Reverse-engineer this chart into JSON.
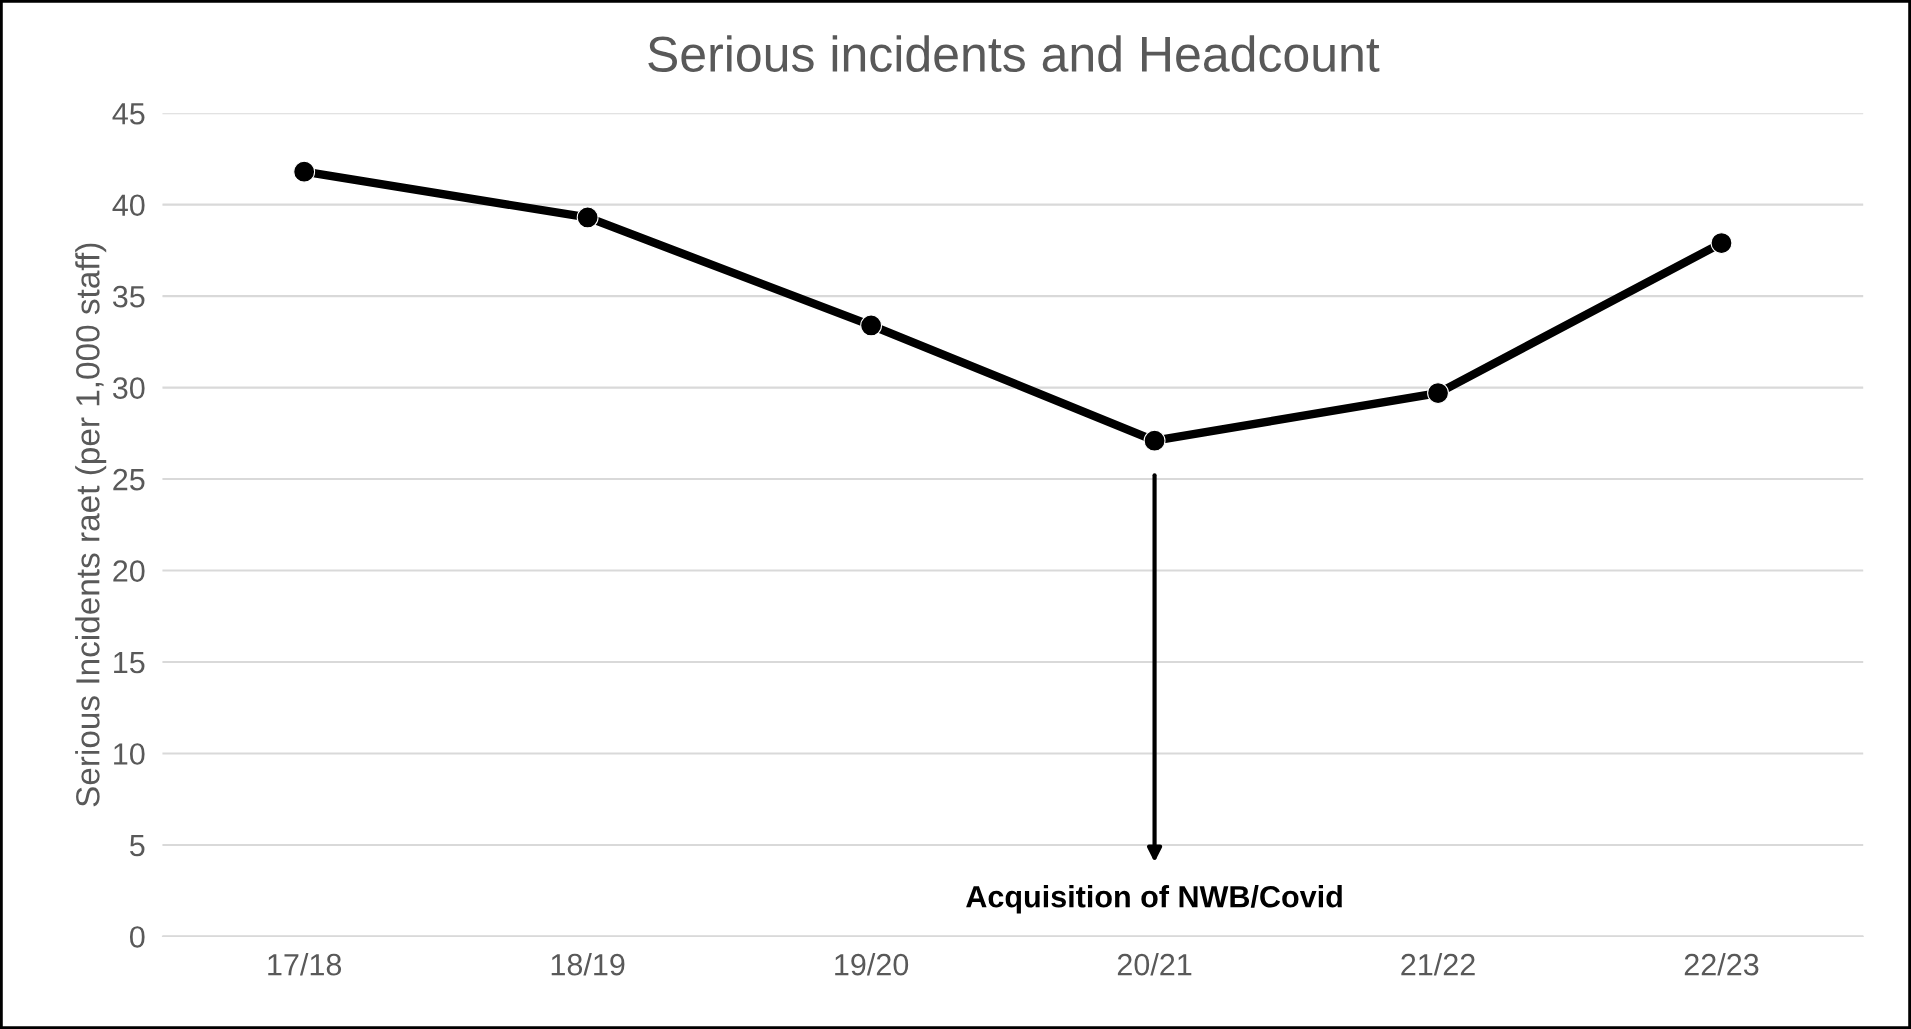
{
  "chart_data": {
    "type": "line",
    "title": "Serious incidents and Headcount",
    "ylabel": "Serious Incidents raet (per 1,000 staff)",
    "categories": [
      "17/18",
      "18/19",
      "19/20",
      "20/21",
      "21/22",
      "22/23"
    ],
    "series": [
      {
        "color": "#000000",
        "values": [
          41.8,
          39.3,
          33.4,
          27.1,
          29.7,
          37.9
        ]
      }
    ],
    "ylim": [
      0,
      45
    ],
    "yticks": [
      0,
      5,
      10,
      15,
      20,
      25,
      30,
      35,
      40,
      45
    ],
    "grid": "y",
    "marker": "circle",
    "line_style": "solid",
    "legend": false,
    "annotations": [
      "Acquisition of NWB/Covid"
    ]
  }
}
